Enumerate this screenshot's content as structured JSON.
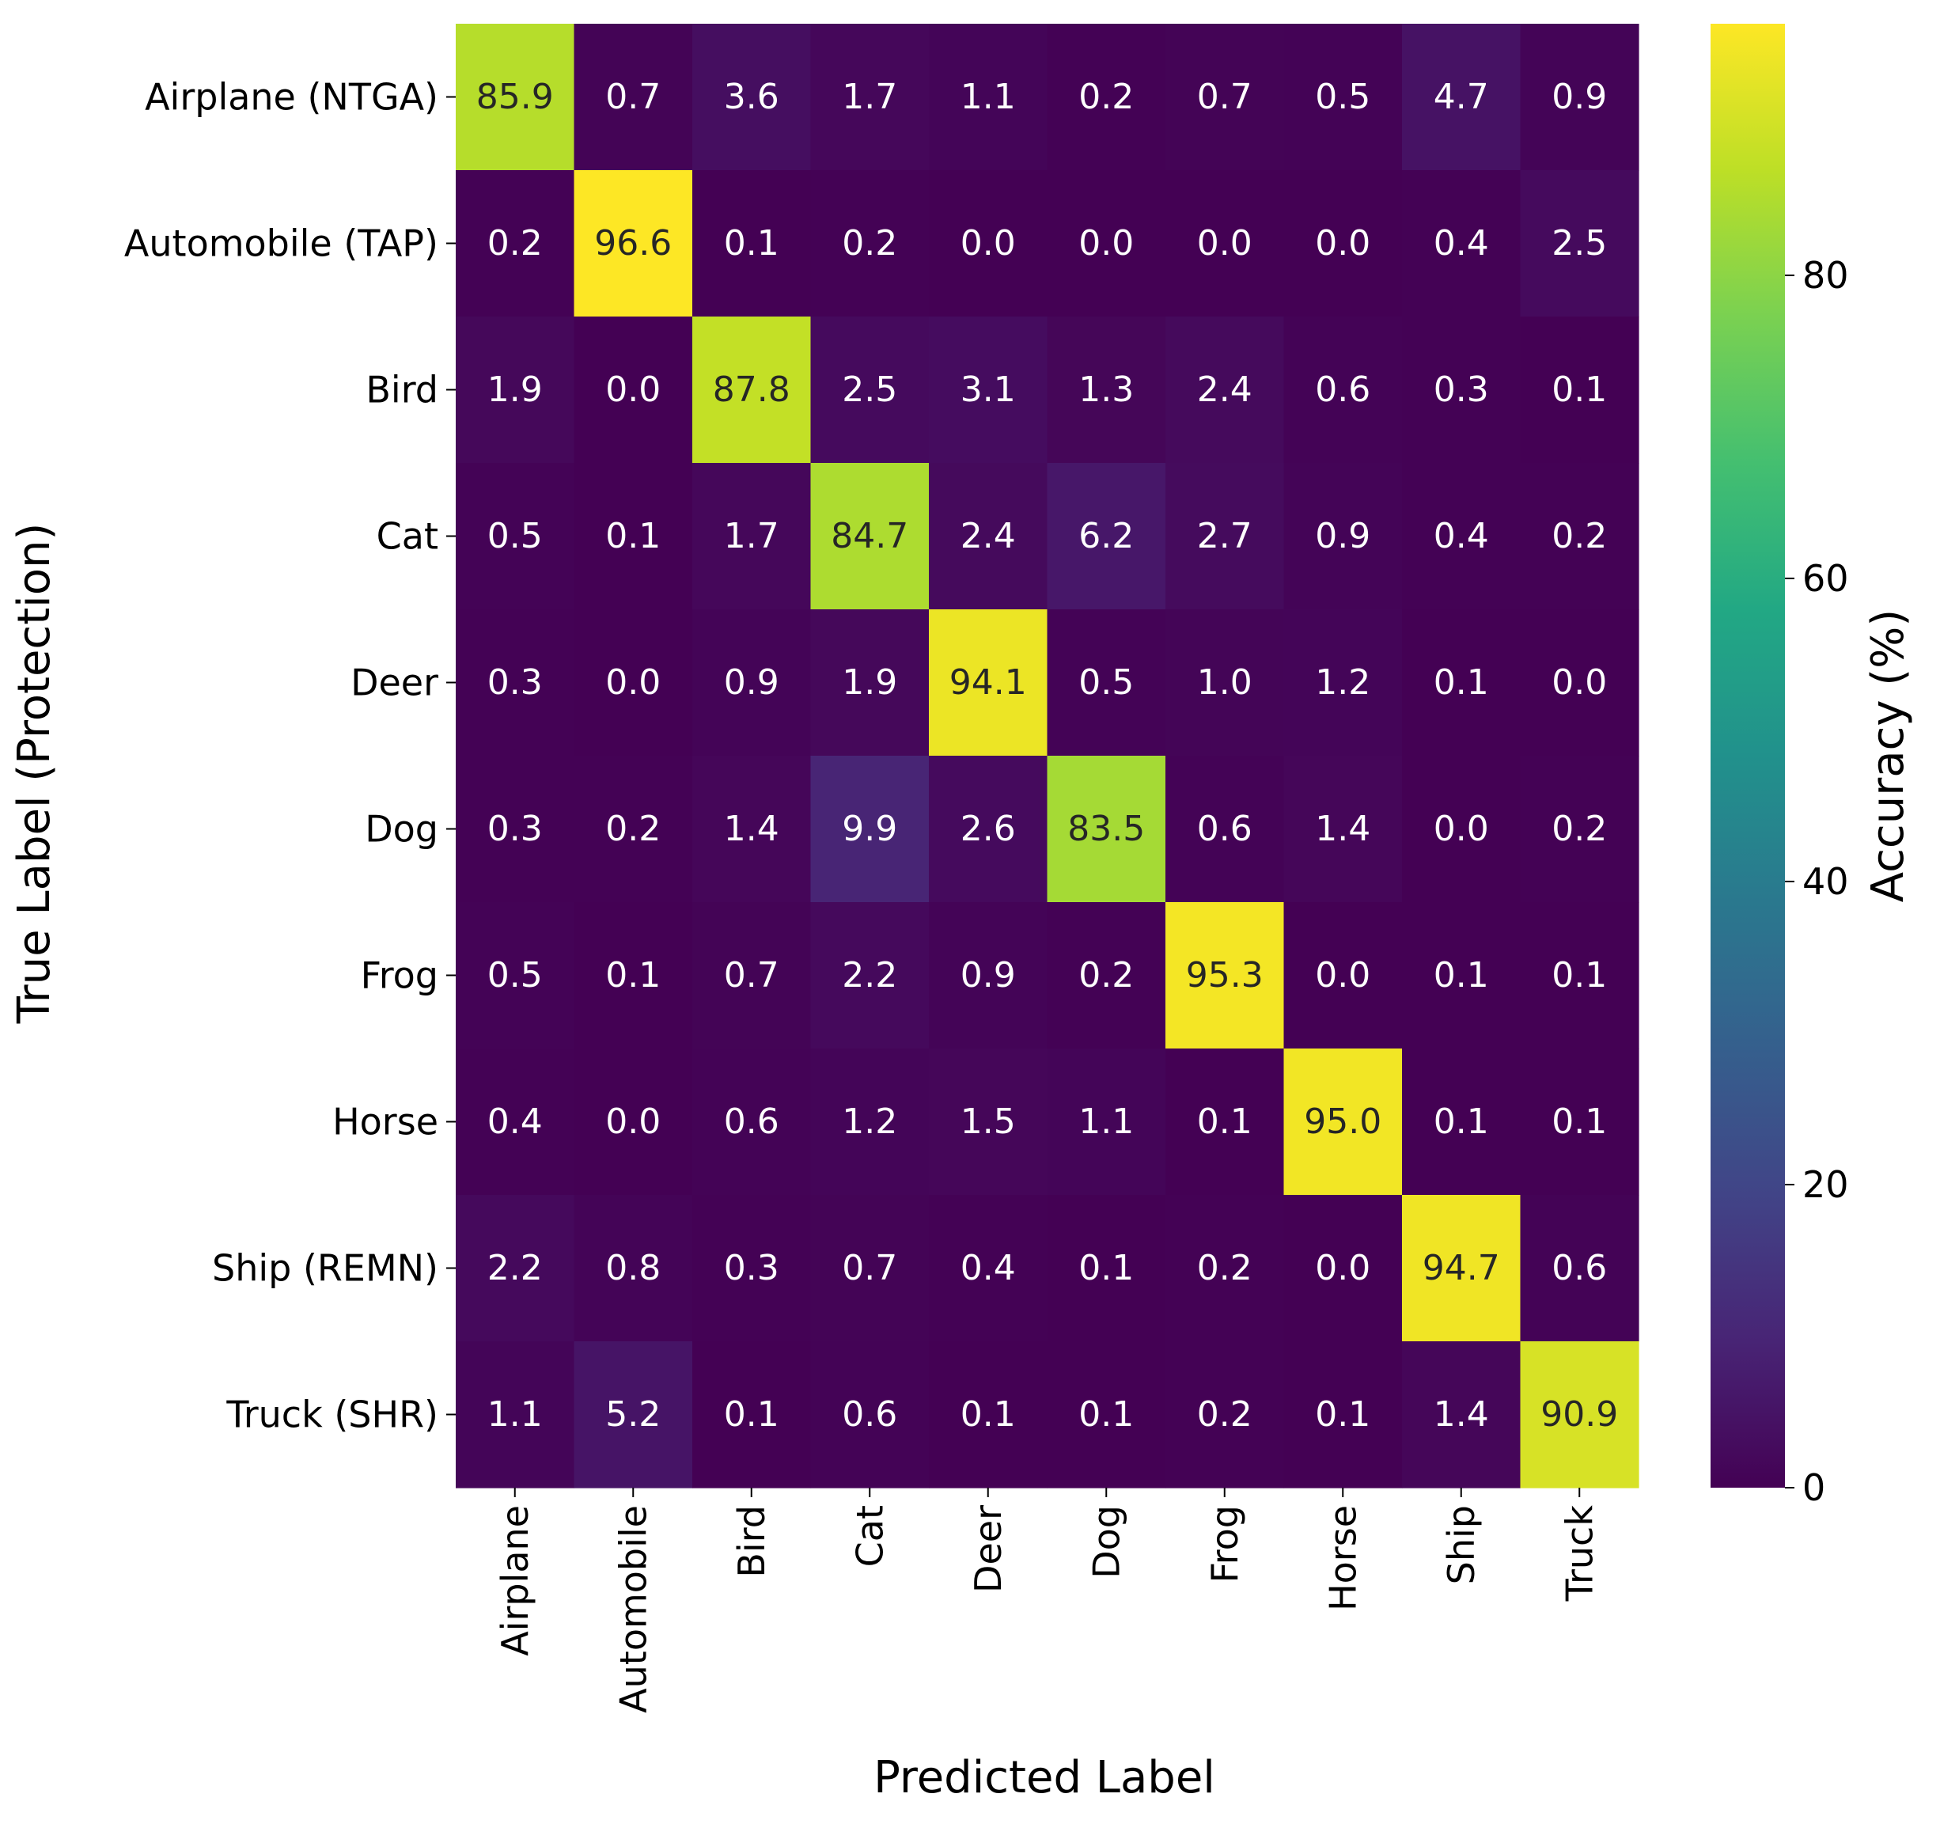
{
  "chart_data": {
    "type": "heatmap",
    "title": "",
    "xlabel": "Predicted Label",
    "ylabel": "True Label (Protection)",
    "x_categories": [
      "Airplane",
      "Automobile",
      "Bird",
      "Cat",
      "Deer",
      "Dog",
      "Frog",
      "Horse",
      "Ship",
      "Truck"
    ],
    "y_categories": [
      "Airplane (NTGA)",
      "Automobile (TAP)",
      "Bird",
      "Cat",
      "Deer",
      "Dog",
      "Frog",
      "Horse",
      "Ship (REMN)",
      "Truck (SHR)"
    ],
    "values": [
      [
        85.9,
        0.7,
        3.6,
        1.7,
        1.1,
        0.2,
        0.7,
        0.5,
        4.7,
        0.9
      ],
      [
        0.2,
        96.6,
        0.1,
        0.2,
        0.0,
        0.0,
        0.0,
        0.0,
        0.4,
        2.5
      ],
      [
        1.9,
        0.0,
        87.8,
        2.5,
        3.1,
        1.3,
        2.4,
        0.6,
        0.3,
        0.1
      ],
      [
        0.5,
        0.1,
        1.7,
        84.7,
        2.4,
        6.2,
        2.7,
        0.9,
        0.4,
        0.2
      ],
      [
        0.3,
        0.0,
        0.9,
        1.9,
        94.1,
        0.5,
        1.0,
        1.2,
        0.1,
        0.0
      ],
      [
        0.3,
        0.2,
        1.4,
        9.9,
        2.6,
        83.5,
        0.6,
        1.4,
        0.0,
        0.2
      ],
      [
        0.5,
        0.1,
        0.7,
        2.2,
        0.9,
        0.2,
        95.3,
        0.0,
        0.1,
        0.1
      ],
      [
        0.4,
        0.0,
        0.6,
        1.2,
        1.5,
        1.1,
        0.1,
        95.0,
        0.1,
        0.1
      ],
      [
        2.2,
        0.8,
        0.3,
        0.7,
        0.4,
        0.1,
        0.2,
        0.0,
        94.7,
        0.6
      ],
      [
        1.1,
        5.2,
        0.1,
        0.6,
        0.1,
        0.1,
        0.2,
        0.1,
        1.4,
        90.9
      ]
    ],
    "colormap": "viridis",
    "vmin": 0,
    "vmax": 96.6,
    "colorbar": {
      "label": "Accuracy (%)",
      "ticks": [
        0,
        20,
        40,
        60,
        80
      ],
      "tick_labels": [
        "0",
        "20",
        "40",
        "60",
        "80"
      ]
    },
    "grid": false
  }
}
